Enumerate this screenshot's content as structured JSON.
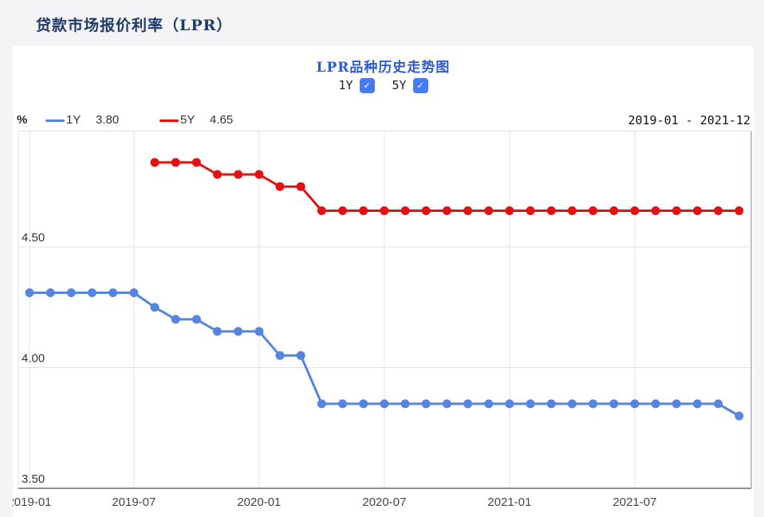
{
  "page": {
    "title": "贷款市场报价利率（LPR）",
    "background": "#f4f4f6"
  },
  "card": {
    "toggles": [
      {
        "label": "1Y",
        "checked": true
      },
      {
        "label": "5Y",
        "checked": true
      }
    ],
    "check_glyph": "✓",
    "legend": [
      {
        "name": "1Y",
        "value": "3.80",
        "color": "#5585E0"
      },
      {
        "name": "5Y",
        "value": "4.65",
        "color": "#E01212"
      }
    ],
    "date_range": "2019-01 - 2021-12",
    "colors": {
      "checkbox": "#4679F2",
      "chart_title": "#2D5BD3",
      "page_title": "#1E3A68",
      "grid": "#E3E3E4",
      "axis_line": "#909090"
    }
  },
  "chart_data": {
    "type": "line",
    "title": "LPR品种历史走势图",
    "xlabel": "",
    "ylabel": "%",
    "grid": true,
    "legend_position": "top-left",
    "marker": "circle",
    "ylim": [
      3.5,
      4.98
    ],
    "yticks": [
      3.5,
      4.0,
      4.5
    ],
    "xticks": [
      "2019-01",
      "2019-07",
      "2020-01",
      "2020-07",
      "2021-01",
      "2021-07"
    ],
    "x": [
      "2019-01",
      "2019-03",
      "2019-04",
      "2019-05",
      "2019-06",
      "2019-07",
      "2019-08",
      "2019-09",
      "2019-10",
      "2019-11",
      "2019-12",
      "2020-01",
      "2020-02",
      "2020-03",
      "2020-04",
      "2020-05",
      "2020-06",
      "2020-07",
      "2020-08",
      "2020-09",
      "2020-10",
      "2020-11",
      "2020-12",
      "2021-01",
      "2021-02",
      "2021-03",
      "2021-04",
      "2021-05",
      "2021-06",
      "2021-07",
      "2021-08",
      "2021-09",
      "2021-10",
      "2021-11",
      "2021-12"
    ],
    "series": [
      {
        "name": "1Y",
        "color": "#5585E0",
        "values": [
          4.31,
          4.31,
          4.31,
          4.31,
          4.31,
          4.31,
          4.25,
          4.2,
          4.2,
          4.15,
          4.15,
          4.15,
          4.05,
          4.05,
          3.85,
          3.85,
          3.85,
          3.85,
          3.85,
          3.85,
          3.85,
          3.85,
          3.85,
          3.85,
          3.85,
          3.85,
          3.85,
          3.85,
          3.85,
          3.85,
          3.85,
          3.85,
          3.85,
          3.85,
          3.8
        ]
      },
      {
        "name": "5Y",
        "color": "#E01212",
        "values": [
          null,
          null,
          null,
          null,
          null,
          null,
          4.85,
          4.85,
          4.85,
          4.8,
          4.8,
          4.8,
          4.75,
          4.75,
          4.65,
          4.65,
          4.65,
          4.65,
          4.65,
          4.65,
          4.65,
          4.65,
          4.65,
          4.65,
          4.65,
          4.65,
          4.65,
          4.65,
          4.65,
          4.65,
          4.65,
          4.65,
          4.65,
          4.65,
          4.65
        ]
      }
    ]
  }
}
